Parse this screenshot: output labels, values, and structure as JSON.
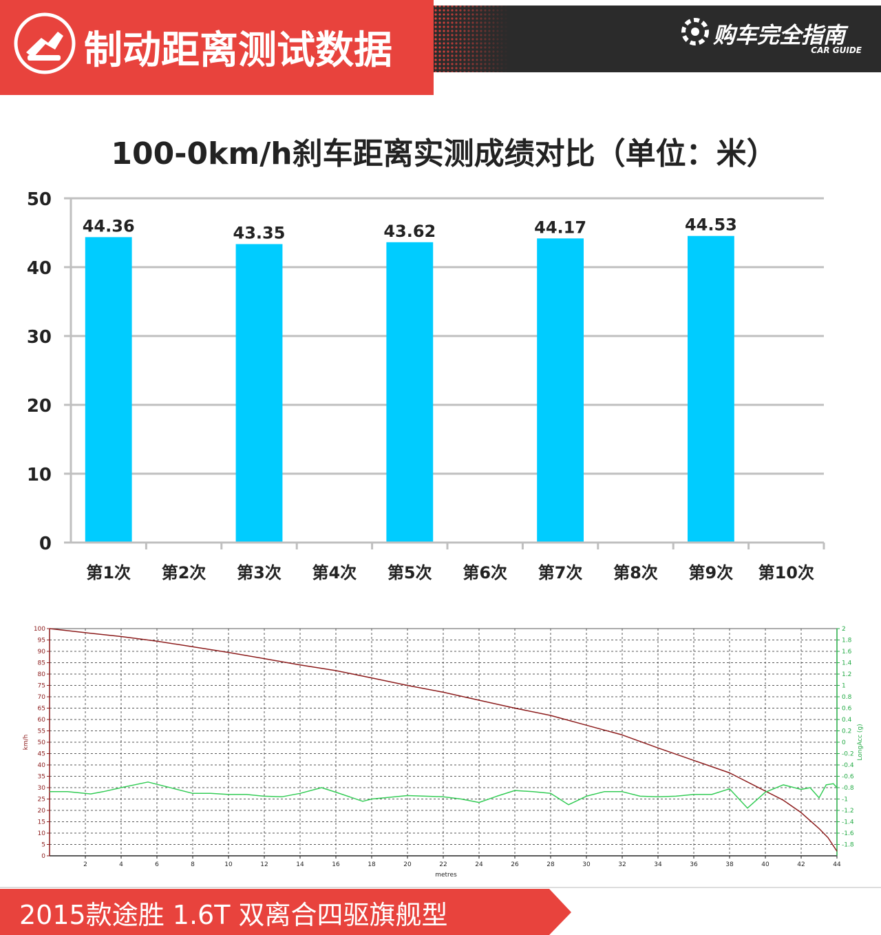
{
  "header": {
    "title": "制动距离测试数据",
    "brand_cn": "购车完全指南",
    "brand_en": "CAR GUIDE",
    "accent_color": "#e8433d",
    "dark_color": "#2b2b2b"
  },
  "footer": {
    "caption": "2015款途胜 1.6T 双离合四驱旗舰型"
  },
  "chart_data": [
    {
      "type": "bar",
      "title": "100-0km/h刹车距离实测成绩对比（单位：米）",
      "categories": [
        "第1次",
        "第2次",
        "第3次",
        "第4次",
        "第5次",
        "第6次",
        "第7次",
        "第8次",
        "第9次",
        "第10次"
      ],
      "values": [
        44.36,
        null,
        43.35,
        null,
        43.62,
        null,
        44.17,
        null,
        44.53,
        null
      ],
      "value_labels": [
        "44.36",
        "",
        "43.35",
        "",
        "43.62",
        "",
        "44.17",
        "",
        "44.53",
        ""
      ],
      "ylim": [
        0,
        50
      ],
      "yticks": [
        "0",
        "10",
        "20",
        "30",
        "40",
        "50"
      ],
      "bar_color": "#00ccff",
      "grid": true
    },
    {
      "type": "line",
      "xlabel": "metres",
      "ylabel_left": "km/h",
      "ylabel_right": "LongAcc (g)",
      "xlim": [
        0,
        44
      ],
      "ylim_left": [
        0,
        100
      ],
      "ylim_right": [
        -2,
        2
      ],
      "xticks": [
        "2",
        "4",
        "6",
        "8",
        "10",
        "12",
        "14",
        "16",
        "18",
        "20",
        "22",
        "24",
        "26",
        "28",
        "30",
        "32",
        "34",
        "36",
        "38",
        "40",
        "42",
        "44"
      ],
      "yticks_left": [
        "0",
        "5",
        "10",
        "15",
        "20",
        "25",
        "30",
        "35",
        "40",
        "45",
        "50",
        "55",
        "60",
        "65",
        "70",
        "75",
        "80",
        "85",
        "90",
        "95",
        "100"
      ],
      "yticks_right": [
        "-1.8",
        "-1.6",
        "-1.4",
        "-1.2",
        "-1",
        "-0.8",
        "-0.6",
        "-0.4",
        "-0.2",
        "0",
        "0.2",
        "0.4",
        "0.6",
        "0.8",
        "1",
        "1.2",
        "1.4",
        "1.6",
        "1.8",
        "2"
      ],
      "grid": true,
      "series": [
        {
          "axis": "left",
          "color": "#8b1a1a",
          "x": [
            0,
            2,
            4,
            6,
            8,
            10,
            12,
            14,
            16,
            18,
            20,
            22,
            24,
            26,
            28,
            30,
            32,
            34,
            36,
            38,
            40,
            41,
            42,
            43,
            43.5,
            44
          ],
          "y": [
            100,
            98.2,
            96.5,
            94.5,
            92,
            89.5,
            86.8,
            84,
            81.5,
            78.3,
            75,
            72,
            68.5,
            65,
            61.8,
            57.5,
            53.2,
            47.5,
            42,
            36.5,
            28.5,
            24.5,
            19,
            12,
            8,
            2
          ]
        },
        {
          "axis": "right",
          "color": "#33cc55",
          "x": [
            0,
            1,
            2.3,
            3,
            4,
            5.5,
            7,
            8,
            9,
            10,
            11,
            12,
            13,
            14,
            15.2,
            16,
            17.5,
            18,
            19,
            20,
            21,
            22,
            23,
            24,
            25,
            26,
            27,
            28,
            29,
            30,
            31,
            32,
            33,
            34,
            35,
            36,
            37,
            38,
            39,
            40,
            41,
            42,
            42.5,
            43,
            43.4,
            43.8,
            44
          ],
          "y": [
            -0.87,
            -0.87,
            -0.91,
            -0.87,
            -0.8,
            -0.7,
            -0.82,
            -0.9,
            -0.9,
            -0.92,
            -0.92,
            -0.95,
            -0.96,
            -0.9,
            -0.8,
            -0.88,
            -1.04,
            -1.0,
            -0.97,
            -0.94,
            -0.95,
            -0.96,
            -1.0,
            -1.06,
            -0.95,
            -0.85,
            -0.87,
            -0.9,
            -1.1,
            -0.95,
            -0.87,
            -0.87,
            -0.95,
            -0.96,
            -0.95,
            -0.92,
            -0.92,
            -0.82,
            -1.16,
            -0.88,
            -0.75,
            -0.83,
            -0.8,
            -0.98,
            -0.75,
            -0.73,
            -0.8
          ]
        }
      ]
    }
  ]
}
